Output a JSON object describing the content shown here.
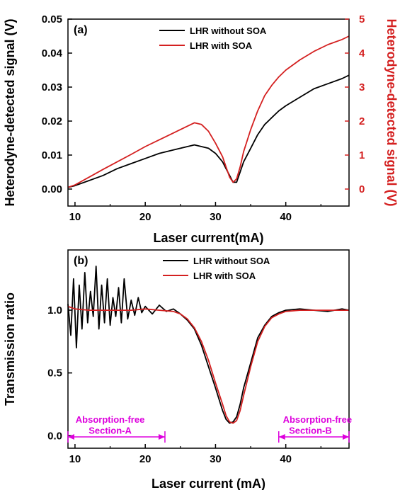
{
  "chart_data": [
    {
      "type": "line",
      "panel_label": "(a)",
      "xlabel": "Laser current(mA)",
      "ylabel": "Heterodyne-detected signal (V)",
      "ylabel_right": "Heterodyne-detected signal (V)",
      "xlim": [
        9,
        49
      ],
      "ylim": [
        -0.005,
        0.05
      ],
      "ylim_right": [
        -0.5,
        5
      ],
      "x_ticks": [
        "10",
        "20",
        "30",
        "40"
      ],
      "y_ticks": [
        "0.00",
        "0.01",
        "0.02",
        "0.03",
        "0.04",
        "0.05"
      ],
      "y_ticks_right": [
        "0",
        "1",
        "2",
        "3",
        "4",
        "5"
      ],
      "legend_position": "top-right",
      "grid": false,
      "series": [
        {
          "name": "LHR without SOA",
          "color": "#000000",
          "axis": "left",
          "x": [
            9,
            10,
            12,
            14,
            16,
            18,
            20,
            22,
            24,
            26,
            27,
            28,
            29,
            30,
            31,
            31.5,
            32,
            32.5,
            33,
            33.5,
            34,
            35,
            36,
            37,
            38,
            39,
            40,
            42,
            44,
            46,
            48,
            49
          ],
          "y": [
            0.0005,
            0.001,
            0.0025,
            0.004,
            0.006,
            0.0075,
            0.009,
            0.0105,
            0.0115,
            0.0125,
            0.013,
            0.0125,
            0.012,
            0.0105,
            0.008,
            0.006,
            0.004,
            0.002,
            0.002,
            0.005,
            0.008,
            0.012,
            0.016,
            0.019,
            0.021,
            0.023,
            0.0245,
            0.027,
            0.0295,
            0.031,
            0.0325,
            0.0335
          ]
        },
        {
          "name": "LHR with SOA",
          "color": "#d42020",
          "axis": "right",
          "x": [
            9,
            10,
            12,
            14,
            16,
            18,
            20,
            22,
            24,
            26,
            27,
            28,
            29,
            30,
            31,
            31.5,
            32,
            32.5,
            33,
            33.5,
            34,
            35,
            36,
            37,
            38,
            39,
            40,
            42,
            44,
            46,
            48,
            49
          ],
          "y": [
            0.05,
            0.12,
            0.35,
            0.58,
            0.8,
            1.02,
            1.25,
            1.45,
            1.65,
            1.85,
            1.95,
            1.9,
            1.7,
            1.35,
            0.95,
            0.65,
            0.35,
            0.2,
            0.3,
            0.65,
            1.1,
            1.75,
            2.3,
            2.75,
            3.05,
            3.3,
            3.5,
            3.8,
            4.05,
            4.25,
            4.4,
            4.5
          ]
        }
      ]
    },
    {
      "type": "line",
      "panel_label": "(b)",
      "xlabel": "Laser current (mA)",
      "ylabel": "Transmission ratio",
      "xlim": [
        9,
        49
      ],
      "ylim": [
        -0.1,
        1.48
      ],
      "x_ticks": [
        "10",
        "20",
        "30",
        "40"
      ],
      "y_ticks": [
        "0.0",
        "0.5",
        "1.0"
      ],
      "legend_position": "top-center",
      "grid": false,
      "series": [
        {
          "name": "LHR without SOA",
          "color": "#000000",
          "x": [
            9,
            9.4,
            9.8,
            10.2,
            10.6,
            11,
            11.4,
            11.8,
            12.2,
            12.6,
            13,
            13.4,
            13.8,
            14.2,
            14.6,
            15,
            15.4,
            15.8,
            16.2,
            16.6,
            17,
            17.5,
            18,
            18.5,
            19,
            19.5,
            20,
            21,
            22,
            23,
            24,
            25,
            26,
            27,
            28,
            29,
            30,
            31,
            31.5,
            32,
            32.5,
            33,
            33.5,
            34,
            35,
            36,
            37,
            38,
            39,
            40,
            42,
            44,
            46,
            48,
            49
          ],
          "y": [
            1.05,
            0.8,
            1.25,
            0.7,
            1.2,
            0.85,
            1.3,
            0.9,
            1.15,
            0.95,
            1.35,
            0.85,
            1.2,
            0.9,
            1.25,
            0.88,
            1.1,
            0.95,
            1.18,
            0.9,
            1.25,
            0.93,
            1.08,
            0.96,
            1.1,
            0.98,
            1.03,
            0.97,
            1.04,
            0.99,
            1.01,
            0.97,
            0.92,
            0.85,
            0.72,
            0.55,
            0.38,
            0.2,
            0.13,
            0.1,
            0.11,
            0.15,
            0.25,
            0.38,
            0.58,
            0.78,
            0.88,
            0.95,
            0.98,
            1.0,
            1.01,
            1.0,
            0.99,
            1.01,
            1.0
          ]
        },
        {
          "name": "LHR with SOA",
          "color": "#d42020",
          "x": [
            9,
            10,
            12,
            14,
            16,
            18,
            20,
            22,
            24,
            25,
            26,
            27,
            28,
            29,
            30,
            31,
            31.5,
            32,
            32.5,
            33,
            33.5,
            34,
            35,
            36,
            37,
            38,
            39,
            40,
            42,
            44,
            46,
            48,
            49
          ],
          "y": [
            1.03,
            1.01,
            1.0,
            1.0,
            1.0,
            1.0,
            1.01,
            1.0,
            0.99,
            0.97,
            0.93,
            0.86,
            0.75,
            0.6,
            0.42,
            0.25,
            0.16,
            0.11,
            0.1,
            0.12,
            0.2,
            0.32,
            0.55,
            0.75,
            0.87,
            0.94,
            0.97,
            0.99,
            1.0,
            1.0,
            1.0,
            1.0,
            1.0
          ]
        }
      ],
      "annotations": [
        {
          "text": "Absorption-free",
          "color": "#dd00dd",
          "x": 15,
          "y": 0.13
        },
        {
          "text": "Section-A",
          "color": "#dd00dd",
          "x": 15,
          "y": 0.045,
          "arrow_from": 9,
          "arrow_to": 22.8,
          "arrow_y": -0.01
        },
        {
          "text": "Absorption-free",
          "color": "#dd00dd",
          "x": 44.5,
          "y": 0.13
        },
        {
          "text": "Section-B",
          "color": "#dd00dd",
          "x": 43.5,
          "y": 0.045,
          "arrow_from": 39,
          "arrow_to": 49,
          "arrow_y": -0.01
        }
      ]
    }
  ]
}
